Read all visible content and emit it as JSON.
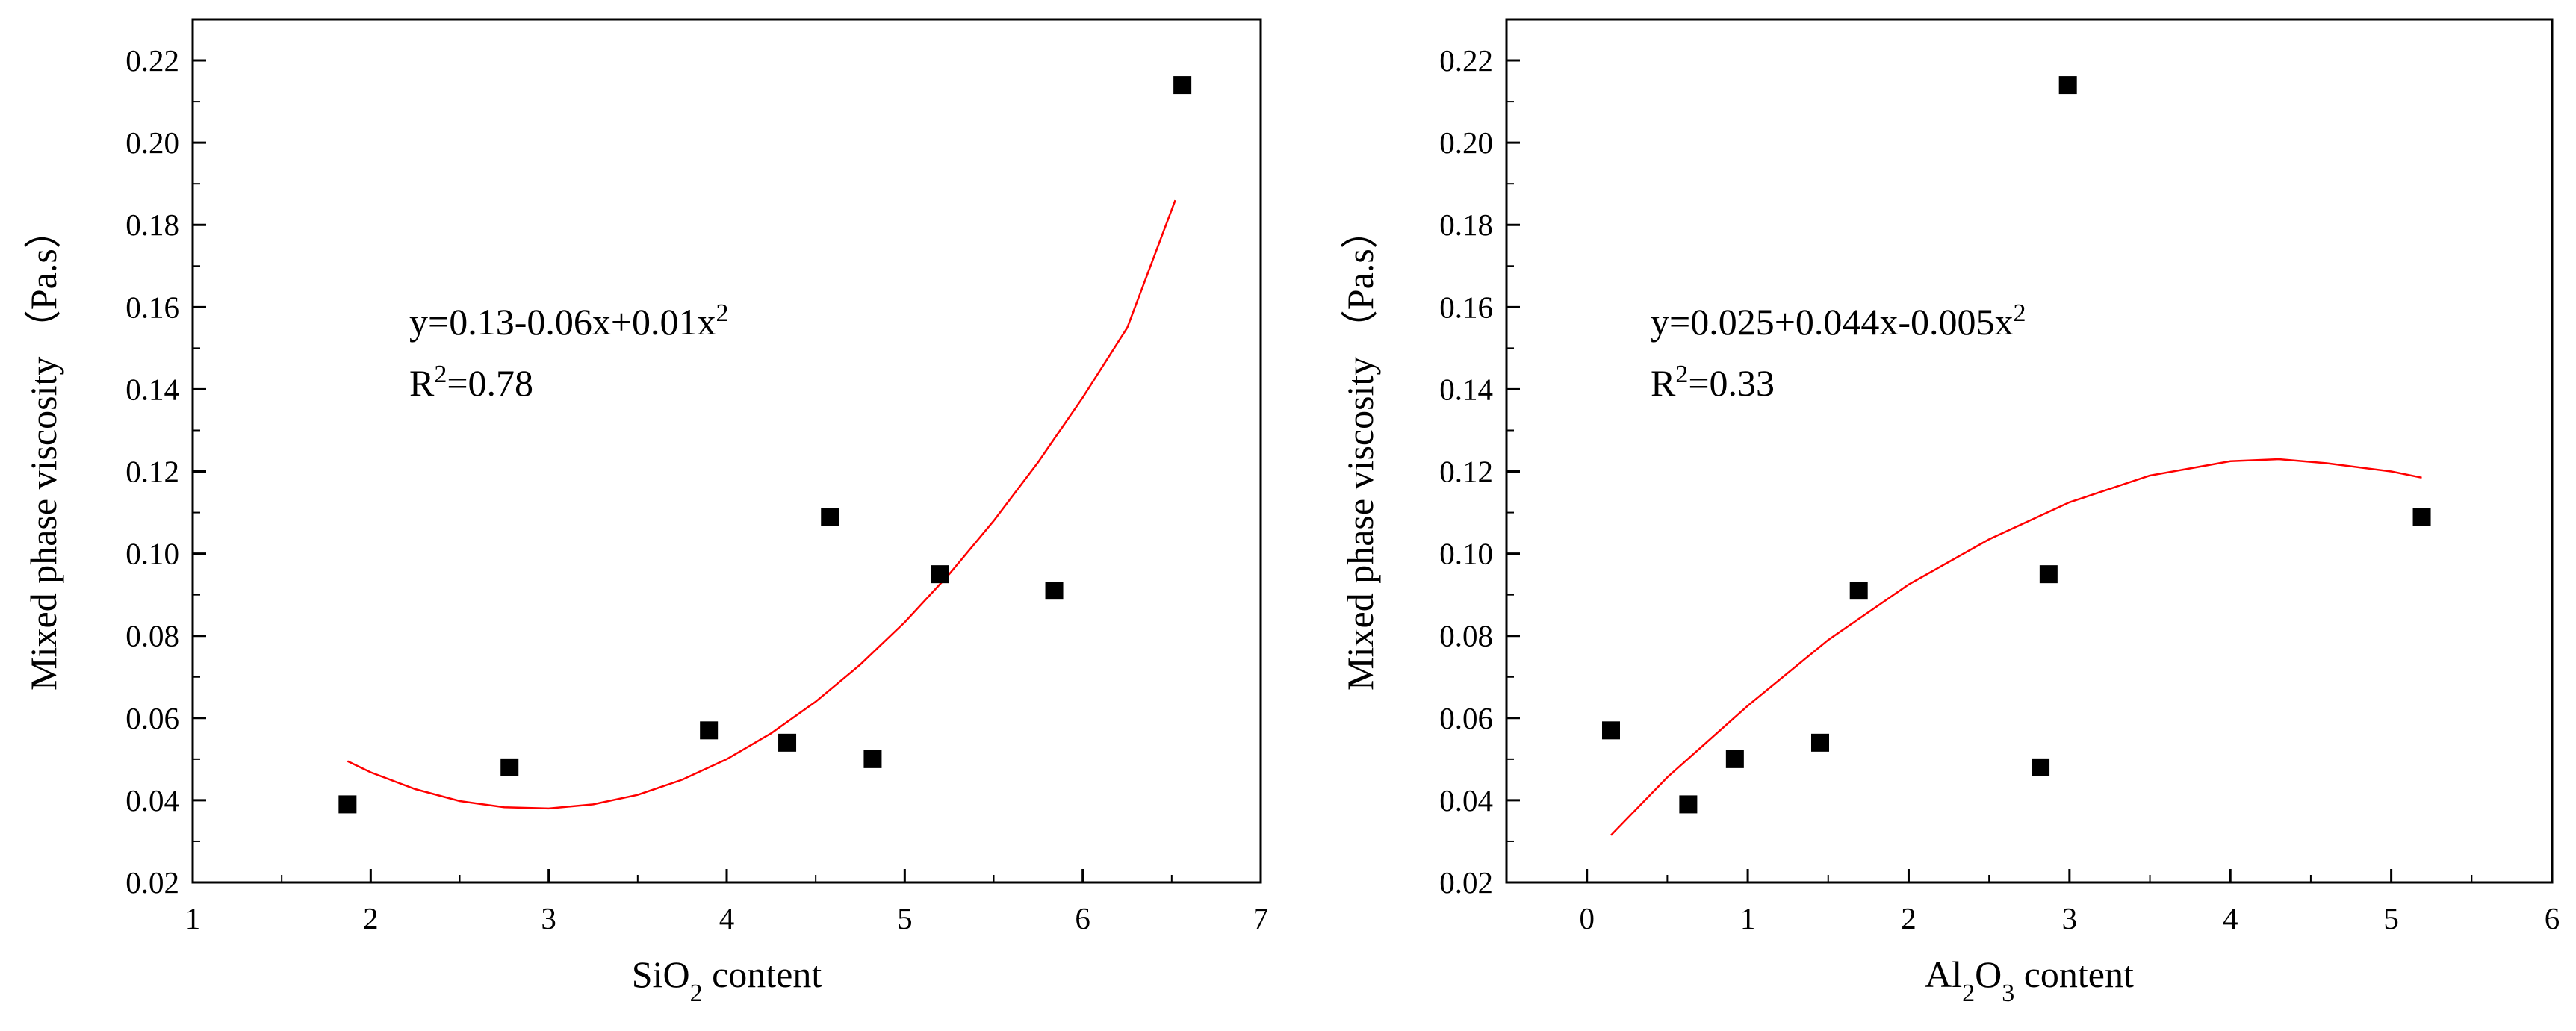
{
  "chart_data": [
    {
      "type": "scatter",
      "title": "",
      "xlabel": "SiO2 content",
      "xlabel_parts": [
        {
          "text": "SiO",
          "sub": false
        },
        {
          "text": "2",
          "sub": true
        },
        {
          "text": " content",
          "sub": false
        }
      ],
      "ylabel": "Mixed phase viscosity （Pa.s）",
      "xlim": [
        1,
        7
      ],
      "ylim": [
        0.02,
        0.23
      ],
      "xticks": [
        1,
        2,
        3,
        4,
        5,
        6,
        7
      ],
      "xtick_labels": [
        "1",
        "2",
        "3",
        "4",
        "5",
        "6",
        "7"
      ],
      "yticks": [
        0.02,
        0.04,
        0.06,
        0.08,
        0.1,
        0.12,
        0.14,
        0.16,
        0.18,
        0.2,
        0.22
      ],
      "ytick_labels": [
        "0.02",
        "0.04",
        "0.06",
        "0.08",
        "0.10",
        "0.12",
        "0.14",
        "0.16",
        "0.18",
        "0.20",
        "0.22"
      ],
      "grid": false,
      "series": [
        {
          "name": "data",
          "marker": "square",
          "color": "#000000",
          "points": [
            [
              1.87,
              0.039
            ],
            [
              2.78,
              0.048
            ],
            [
              3.9,
              0.057
            ],
            [
              4.34,
              0.054
            ],
            [
              4.58,
              0.109
            ],
            [
              4.82,
              0.05
            ],
            [
              5.2,
              0.095
            ],
            [
              5.84,
              0.091
            ],
            [
              6.56,
              0.214
            ]
          ]
        }
      ],
      "fit": {
        "type": "quadratic",
        "color": "#ff0000",
        "x_range": [
          1.87,
          6.52
        ],
        "points": [
          [
            1.87,
            0.0495
          ],
          [
            2.0,
            0.0468
          ],
          [
            2.25,
            0.0427
          ],
          [
            2.5,
            0.0398
          ],
          [
            2.75,
            0.0383
          ],
          [
            3.0,
            0.038
          ],
          [
            3.25,
            0.039
          ],
          [
            3.5,
            0.0413
          ],
          [
            3.75,
            0.045
          ],
          [
            4.0,
            0.05
          ],
          [
            4.25,
            0.0563
          ],
          [
            4.5,
            0.064
          ],
          [
            4.75,
            0.073
          ],
          [
            5.0,
            0.0833
          ],
          [
            5.25,
            0.095
          ],
          [
            5.5,
            0.108
          ],
          [
            5.75,
            0.1223
          ],
          [
            6.0,
            0.138
          ],
          [
            6.25,
            0.155
          ],
          [
            6.52,
            0.186
          ]
        ]
      },
      "equation_lines": [
        [
          {
            "text": "y=0.13-0.06x+0.01x",
            "sup": false
          },
          {
            "text": "2",
            "sup": true
          }
        ],
        [
          {
            "text": "R",
            "sup": false
          },
          {
            "text": "2",
            "sup": true
          },
          {
            "text": "=0.78",
            "sup": false
          }
        ]
      ]
    },
    {
      "type": "scatter",
      "title": "",
      "xlabel": "Al2O3 content",
      "xlabel_parts": [
        {
          "text": "Al",
          "sub": false
        },
        {
          "text": "2",
          "sub": true
        },
        {
          "text": "O",
          "sub": false
        },
        {
          "text": "3",
          "sub": true
        },
        {
          "text": " content",
          "sub": false
        }
      ],
      "ylabel": "Mixed phase viscosity （Pa.s）",
      "xlim": [
        -0.5,
        6
      ],
      "ylim": [
        0.02,
        0.23
      ],
      "xticks": [
        0,
        1,
        2,
        3,
        4,
        5,
        6
      ],
      "xtick_labels": [
        "0",
        "1",
        "2",
        "3",
        "4",
        "5",
        "6"
      ],
      "yticks": [
        0.02,
        0.04,
        0.06,
        0.08,
        0.1,
        0.12,
        0.14,
        0.16,
        0.18,
        0.2,
        0.22
      ],
      "ytick_labels": [
        "0.02",
        "0.04",
        "0.06",
        "0.08",
        "0.10",
        "0.12",
        "0.14",
        "0.16",
        "0.18",
        "0.20",
        "0.22"
      ],
      "grid": false,
      "series": [
        {
          "name": "data",
          "marker": "square",
          "color": "#000000",
          "points": [
            [
              0.15,
              0.057
            ],
            [
              0.63,
              0.039
            ],
            [
              0.92,
              0.05
            ],
            [
              1.45,
              0.054
            ],
            [
              1.69,
              0.091
            ],
            [
              2.82,
              0.048
            ],
            [
              2.87,
              0.095
            ],
            [
              2.99,
              0.214
            ],
            [
              5.19,
              0.109
            ]
          ]
        }
      ],
      "fit": {
        "type": "quadratic",
        "color": "#ff0000",
        "x_range": [
          0.15,
          5.19
        ],
        "points": [
          [
            0.15,
            0.0315
          ],
          [
            0.5,
            0.0456
          ],
          [
            1.0,
            0.063
          ],
          [
            1.5,
            0.079
          ],
          [
            2.0,
            0.0925
          ],
          [
            2.5,
            0.1035
          ],
          [
            3.0,
            0.1125
          ],
          [
            3.5,
            0.119
          ],
          [
            4.0,
            0.1225
          ],
          [
            4.3,
            0.123
          ],
          [
            4.6,
            0.122
          ],
          [
            5.0,
            0.12
          ],
          [
            5.19,
            0.1185
          ]
        ]
      },
      "equation_lines": [
        [
          {
            "text": "y=0.025+0.044x-0.005x",
            "sup": false
          },
          {
            "text": "2",
            "sup": true
          }
        ],
        [
          {
            "text": "R",
            "sup": false
          },
          {
            "text": "2",
            "sup": true
          },
          {
            "text": "=0.33",
            "sup": false
          }
        ]
      ]
    }
  ]
}
